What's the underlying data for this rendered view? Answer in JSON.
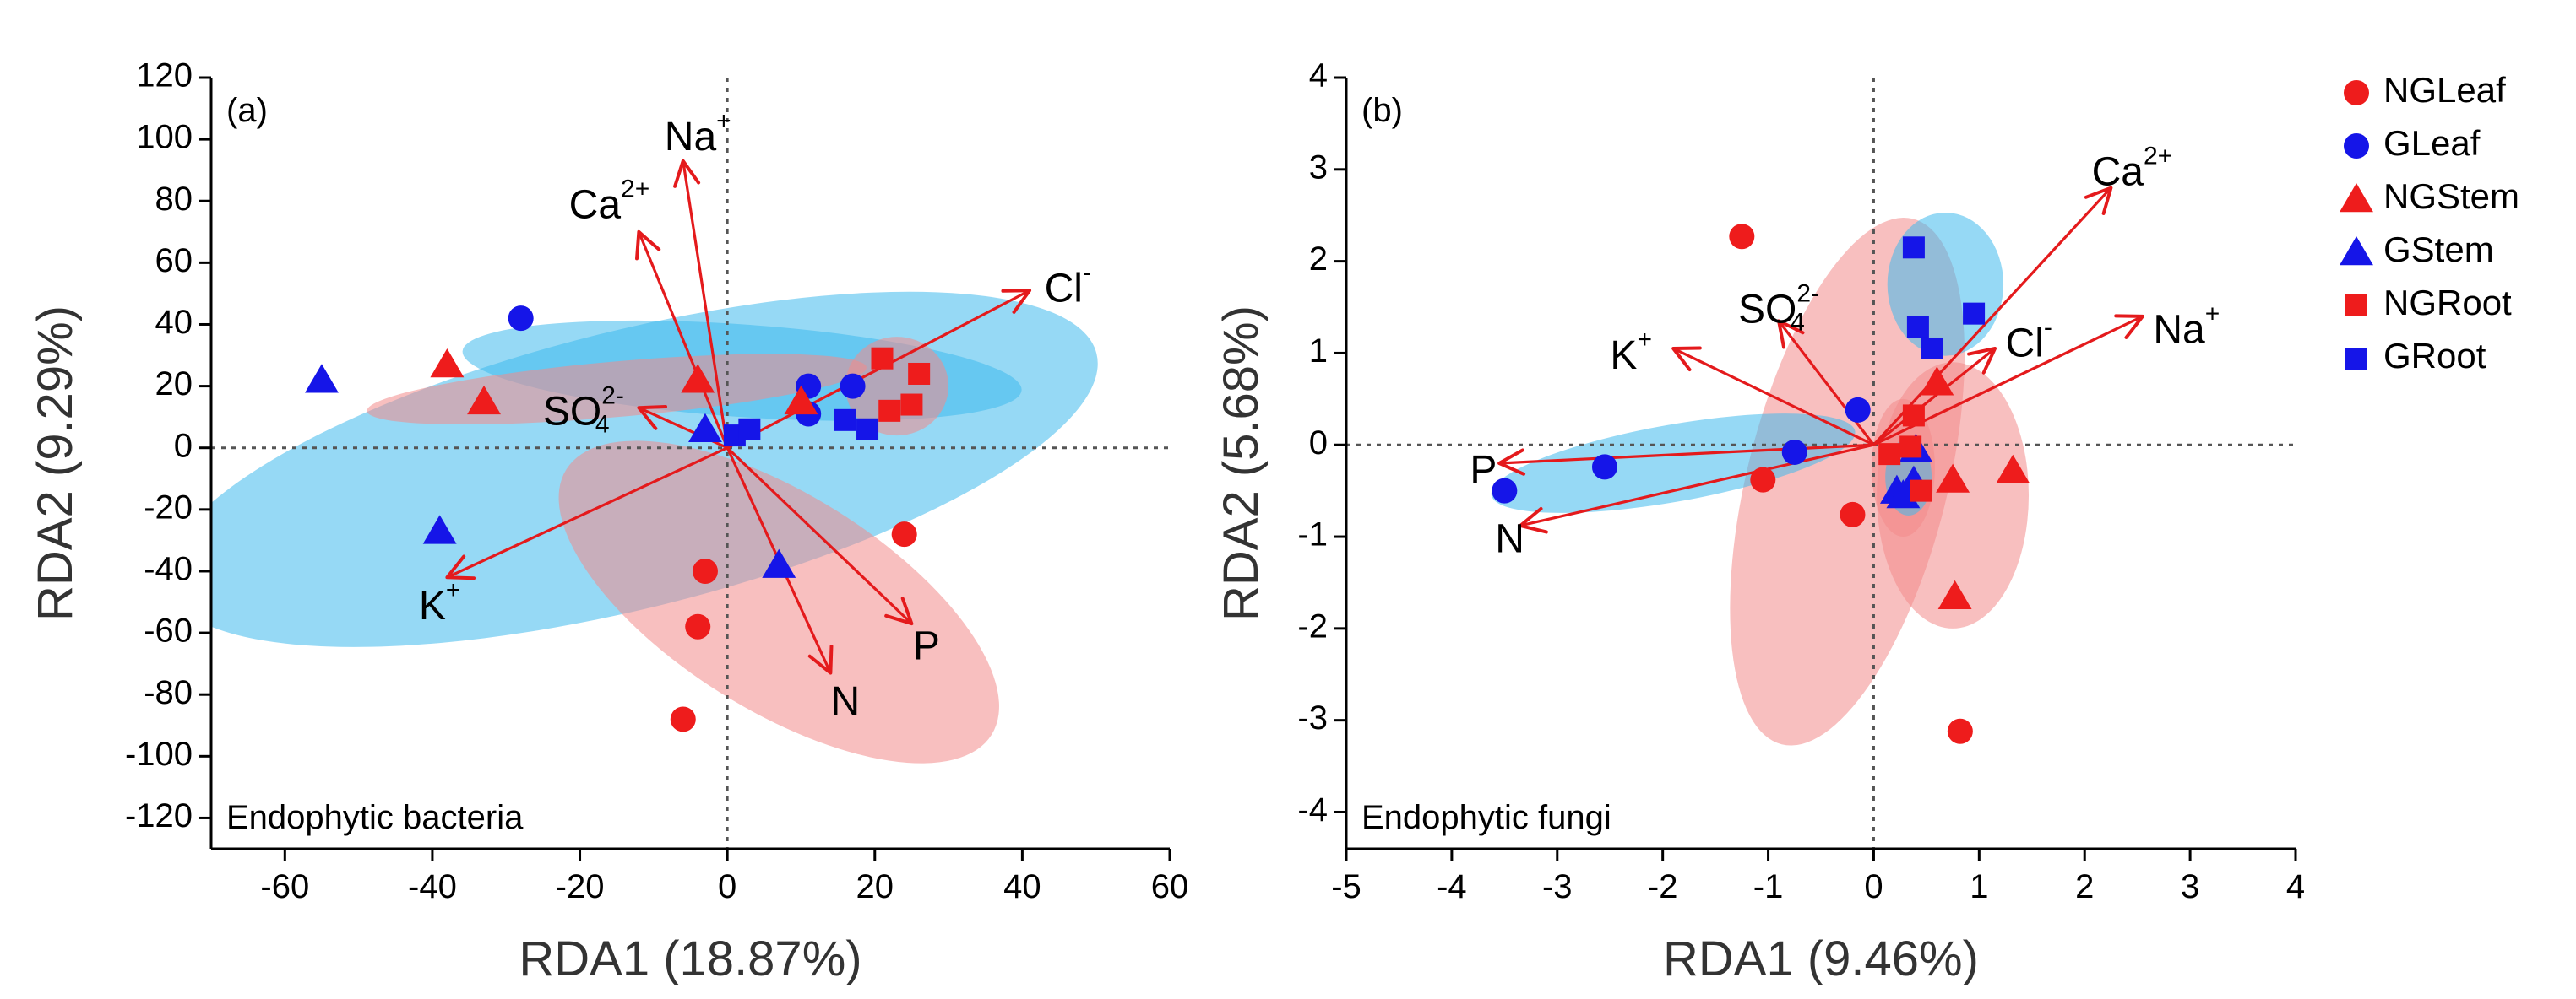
{
  "colors": {
    "red": "#ee1c1c",
    "blue": "#1515e8",
    "arrow": "#e41a1c",
    "ellipse_blue": "#3fb9ec",
    "ellipse_red": "#f28b8b"
  },
  "legend": {
    "items": [
      {
        "label": "NGLeaf",
        "shape": "circle",
        "color": "#ee1c1c"
      },
      {
        "label": "GLeaf",
        "shape": "circle",
        "color": "#1515e8"
      },
      {
        "label": "NGStem",
        "shape": "triangle",
        "color": "#ee1c1c"
      },
      {
        "label": "GStem",
        "shape": "triangle",
        "color": "#1515e8"
      },
      {
        "label": "NGRoot",
        "shape": "square",
        "color": "#ee1c1c"
      },
      {
        "label": "GRoot",
        "shape": "square",
        "color": "#1515e8"
      }
    ]
  },
  "chart_data": [
    {
      "type": "scatter",
      "panel_label": "(a)",
      "annotation": "Endophytic bacteria",
      "xlabel": "RDA1 (18.87%)",
      "ylabel": "RDA2 (9.29%)",
      "xlim": [
        -70,
        60
      ],
      "ylim": [
        -130,
        120
      ],
      "xticks": [
        -60,
        -40,
        -20,
        0,
        20,
        40,
        60
      ],
      "yticks": [
        -120,
        -100,
        -80,
        -60,
        -40,
        -20,
        0,
        20,
        40,
        60,
        80,
        100,
        120
      ],
      "ellipses": [
        {
          "group": "GStem",
          "color": "ellipse_blue",
          "cx": -13,
          "cy": -7,
          "rx": 65,
          "ry": 45,
          "angle": 14
        },
        {
          "group": "GLeaf",
          "color": "ellipse_blue",
          "cx": 2,
          "cy": 25,
          "rx": 38,
          "ry": 15,
          "angle": -4
        },
        {
          "group": "NGStem",
          "color": "ellipse_red",
          "cx": -15,
          "cy": 19,
          "rx": 34,
          "ry": 9,
          "angle": 5
        },
        {
          "group": "NGRoot",
          "color": "ellipse_red",
          "cx": 23,
          "cy": 20,
          "rx": 7,
          "ry": 16,
          "angle": 0
        },
        {
          "group": "NGLeaf",
          "color": "ellipse_red",
          "cx": 7,
          "cy": -50,
          "rx": 34,
          "ry": 35,
          "angle": -32
        }
      ],
      "points": [
        {
          "group": "NGLeaf",
          "shape": "circle",
          "color": "red",
          "x": 24,
          "y": -28
        },
        {
          "group": "NGLeaf",
          "shape": "circle",
          "color": "red",
          "x": -3,
          "y": -40
        },
        {
          "group": "NGLeaf",
          "shape": "circle",
          "color": "red",
          "x": -4,
          "y": -58
        },
        {
          "group": "NGLeaf",
          "shape": "circle",
          "color": "red",
          "x": -6,
          "y": -88
        },
        {
          "group": "GLeaf",
          "shape": "circle",
          "color": "blue",
          "x": -28,
          "y": 42
        },
        {
          "group": "GLeaf",
          "shape": "circle",
          "color": "blue",
          "x": 11,
          "y": 20
        },
        {
          "group": "GLeaf",
          "shape": "circle",
          "color": "blue",
          "x": 11,
          "y": 11
        },
        {
          "group": "GLeaf",
          "shape": "circle",
          "color": "blue",
          "x": 17,
          "y": 20
        },
        {
          "group": "NGStem",
          "shape": "triangle",
          "color": "red",
          "x": -38,
          "y": 27
        },
        {
          "group": "NGStem",
          "shape": "triangle",
          "color": "red",
          "x": -33,
          "y": 15
        },
        {
          "group": "NGStem",
          "shape": "triangle",
          "color": "red",
          "x": -4,
          "y": 22
        },
        {
          "group": "NGStem",
          "shape": "triangle",
          "color": "red",
          "x": 10,
          "y": 15
        },
        {
          "group": "GStem",
          "shape": "triangle",
          "color": "blue",
          "x": -55,
          "y": 22
        },
        {
          "group": "GStem",
          "shape": "triangle",
          "color": "blue",
          "x": -39,
          "y": -27
        },
        {
          "group": "GStem",
          "shape": "triangle",
          "color": "blue",
          "x": 7,
          "y": -38
        },
        {
          "group": "GStem",
          "shape": "triangle",
          "color": "blue",
          "x": -3,
          "y": 6
        },
        {
          "group": "NGRoot",
          "shape": "square",
          "color": "red",
          "x": 21,
          "y": 29
        },
        {
          "group": "NGRoot",
          "shape": "square",
          "color": "red",
          "x": 26,
          "y": 24
        },
        {
          "group": "NGRoot",
          "shape": "square",
          "color": "red",
          "x": 22,
          "y": 12
        },
        {
          "group": "NGRoot",
          "shape": "square",
          "color": "red",
          "x": 25,
          "y": 14
        },
        {
          "group": "GRoot",
          "shape": "square",
          "color": "blue",
          "x": 1,
          "y": 4
        },
        {
          "group": "GRoot",
          "shape": "square",
          "color": "blue",
          "x": 3,
          "y": 6
        },
        {
          "group": "GRoot",
          "shape": "square",
          "color": "blue",
          "x": 16,
          "y": 9
        },
        {
          "group": "GRoot",
          "shape": "square",
          "color": "blue",
          "x": 19,
          "y": 6
        }
      ],
      "vectors": [
        {
          "name": "Na",
          "sup": "+",
          "sub": "",
          "x": -6,
          "y": 93,
          "label_x": -4,
          "label_y": 100,
          "anchor": "middle"
        },
        {
          "name": "Ca",
          "sup": "2+",
          "sub": "",
          "x": -12,
          "y": 70,
          "label_x": -16,
          "label_y": 78,
          "anchor": "middle"
        },
        {
          "name": "Cl",
          "sup": "-",
          "sub": "",
          "x": 41,
          "y": 51,
          "label_x": 43,
          "label_y": 51,
          "anchor": "start"
        },
        {
          "name": "SO",
          "sup": "2-",
          "sub": "4",
          "x": -12,
          "y": 13,
          "label_x": -14,
          "label_y": 11,
          "anchor": "end"
        },
        {
          "name": "K",
          "sup": "+",
          "sub": "",
          "x": -38,
          "y": -42,
          "label_x": -39,
          "label_y": -52,
          "anchor": "middle"
        },
        {
          "name": "N",
          "sup": "",
          "sub": "",
          "x": 14,
          "y": -73,
          "label_x": 16,
          "label_y": -83,
          "anchor": "middle"
        },
        {
          "name": "P",
          "sup": "",
          "sub": "",
          "x": 25,
          "y": -57,
          "label_x": 27,
          "label_y": -65,
          "anchor": "middle"
        }
      ]
    },
    {
      "type": "scatter",
      "panel_label": "(b)",
      "annotation": "Endophytic fungi",
      "xlabel": "RDA1 (9.46%)",
      "ylabel": "RDA2 (5.68%)",
      "xlim": [
        -5,
        4
      ],
      "ylim": [
        -4.4,
        4
      ],
      "xticks": [
        -5,
        -4,
        -3,
        -2,
        -1,
        0,
        1,
        2,
        3,
        4
      ],
      "yticks": [
        -4,
        -3,
        -2,
        -1,
        0,
        1,
        2,
        3,
        4
      ],
      "ellipses": [
        {
          "group": "NGLeaf",
          "color": "ellipse_red",
          "cx": -0.25,
          "cy": -0.4,
          "rx": 0.95,
          "ry": 2.95,
          "angle": -14
        },
        {
          "group": "NGStem",
          "color": "ellipse_red",
          "cx": 0.75,
          "cy": -0.55,
          "rx": 0.72,
          "ry": 1.45,
          "angle": 0
        },
        {
          "group": "GLeaf",
          "color": "ellipse_blue",
          "cx": -1.9,
          "cy": -0.2,
          "rx": 1.75,
          "ry": 0.42,
          "angle": 10
        },
        {
          "group": "GRoot",
          "color": "ellipse_blue",
          "cx": 0.68,
          "cy": 1.75,
          "rx": 0.55,
          "ry": 0.78,
          "angle": 0
        },
        {
          "group": "NGRoot",
          "color": "ellipse_red",
          "cx": 0.28,
          "cy": -0.25,
          "rx": 0.3,
          "ry": 0.75,
          "angle": 0
        },
        {
          "group": "GStem",
          "color": "ellipse_blue",
          "cx": 0.33,
          "cy": -0.35,
          "rx": 0.22,
          "ry": 0.42,
          "angle": 0
        }
      ],
      "points": [
        {
          "group": "NGLeaf",
          "shape": "circle",
          "color": "red",
          "x": -1.25,
          "y": 2.27
        },
        {
          "group": "NGLeaf",
          "shape": "circle",
          "color": "red",
          "x": -1.05,
          "y": -0.38
        },
        {
          "group": "NGLeaf",
          "shape": "circle",
          "color": "red",
          "x": -0.2,
          "y": -0.76
        },
        {
          "group": "NGLeaf",
          "shape": "circle",
          "color": "red",
          "x": 0.82,
          "y": -3.12
        },
        {
          "group": "GLeaf",
          "shape": "circle",
          "color": "blue",
          "x": -3.5,
          "y": -0.5
        },
        {
          "group": "GLeaf",
          "shape": "circle",
          "color": "blue",
          "x": -2.55,
          "y": -0.24
        },
        {
          "group": "GLeaf",
          "shape": "circle",
          "color": "blue",
          "x": -0.75,
          "y": -0.08
        },
        {
          "group": "GLeaf",
          "shape": "circle",
          "color": "blue",
          "x": -0.15,
          "y": 0.38
        },
        {
          "group": "NGStem",
          "shape": "triangle",
          "color": "red",
          "x": 0.6,
          "y": 0.68
        },
        {
          "group": "NGStem",
          "shape": "triangle",
          "color": "red",
          "x": 0.75,
          "y": -0.38
        },
        {
          "group": "NGStem",
          "shape": "triangle",
          "color": "red",
          "x": 1.32,
          "y": -0.28
        },
        {
          "group": "NGStem",
          "shape": "triangle",
          "color": "red",
          "x": 0.77,
          "y": -1.65
        },
        {
          "group": "GStem",
          "shape": "triangle",
          "color": "blue",
          "x": 0.22,
          "y": -0.5
        },
        {
          "group": "GStem",
          "shape": "triangle",
          "color": "blue",
          "x": 0.38,
          "y": -0.4
        },
        {
          "group": "GStem",
          "shape": "triangle",
          "color": "blue",
          "x": 0.4,
          "y": -0.05
        },
        {
          "group": "GStem",
          "shape": "triangle",
          "color": "blue",
          "x": 0.28,
          "y": -0.55
        },
        {
          "group": "NGRoot",
          "shape": "square",
          "color": "red",
          "x": 0.15,
          "y": -0.1
        },
        {
          "group": "NGRoot",
          "shape": "square",
          "color": "red",
          "x": 0.35,
          "y": -0.02
        },
        {
          "group": "NGRoot",
          "shape": "square",
          "color": "red",
          "x": 0.38,
          "y": 0.32
        },
        {
          "group": "NGRoot",
          "shape": "square",
          "color": "red",
          "x": 0.45,
          "y": -0.5
        },
        {
          "group": "GRoot",
          "shape": "square",
          "color": "blue",
          "x": 0.38,
          "y": 2.15
        },
        {
          "group": "GRoot",
          "shape": "square",
          "color": "blue",
          "x": 0.42,
          "y": 1.28
        },
        {
          "group": "GRoot",
          "shape": "square",
          "color": "blue",
          "x": 0.55,
          "y": 1.05
        },
        {
          "group": "GRoot",
          "shape": "square",
          "color": "blue",
          "x": 0.95,
          "y": 1.43
        }
      ],
      "vectors": [
        {
          "name": "Ca",
          "sup": "2+",
          "sub": "",
          "x": 2.25,
          "y": 2.8,
          "label_x": 2.45,
          "label_y": 2.95,
          "anchor": "middle"
        },
        {
          "name": "Na",
          "sup": "+",
          "sub": "",
          "x": 2.55,
          "y": 1.4,
          "label_x": 2.65,
          "label_y": 1.23,
          "anchor": "start"
        },
        {
          "name": "Cl",
          "sup": "-",
          "sub": "",
          "x": 1.15,
          "y": 1.05,
          "label_x": 1.25,
          "label_y": 1.08,
          "anchor": "start"
        },
        {
          "name": "SO",
          "sup": "2-",
          "sub": "4",
          "x": -0.9,
          "y": 1.35,
          "label_x": -0.9,
          "label_y": 1.45,
          "anchor": "middle"
        },
        {
          "name": "K",
          "sup": "+",
          "sub": "",
          "x": -1.9,
          "y": 1.05,
          "label_x": -2.3,
          "label_y": 0.95,
          "anchor": "middle"
        },
        {
          "name": "P",
          "sup": "",
          "sub": "",
          "x": -3.55,
          "y": -0.2,
          "label_x": -3.7,
          "label_y": -0.3,
          "anchor": "middle"
        },
        {
          "name": "N",
          "sup": "",
          "sub": "",
          "x": -3.35,
          "y": -0.88,
          "label_x": -3.45,
          "label_y": -1.05,
          "anchor": "middle"
        }
      ]
    }
  ]
}
